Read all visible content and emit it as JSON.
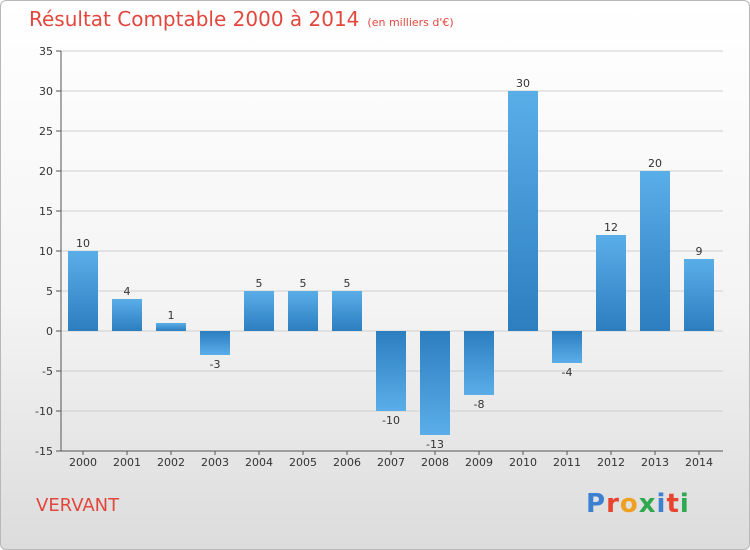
{
  "header": {
    "title": "Résultat Comptable 2000 à 2014",
    "subtitle": "(en milliers d'€)"
  },
  "footer": {
    "place_name": "VERVANT",
    "logo_letters": [
      "P",
      "r",
      "o",
      "x",
      "i",
      "t",
      "i"
    ],
    "logo_colors": [
      "#3d7fd1",
      "#e8432f",
      "#f0a020",
      "#2fa84f",
      "#3d7fd1",
      "#e8432f",
      "#2fa84f"
    ]
  },
  "chart_data": {
    "type": "bar",
    "categories": [
      "2000",
      "2001",
      "2002",
      "2003",
      "2004",
      "2005",
      "2006",
      "2007",
      "2008",
      "2009",
      "2010",
      "2011",
      "2012",
      "2013",
      "2014"
    ],
    "values": [
      10,
      4,
      1,
      -3,
      5,
      5,
      5,
      -10,
      -13,
      -8,
      30,
      -4,
      12,
      20,
      9
    ],
    "value_labels": [
      "10",
      "4",
      "1",
      "-3",
      "5",
      "5",
      "5",
      "-10",
      "-13",
      "-8",
      "30",
      "-4",
      "12",
      "20",
      "9"
    ],
    "ylim": [
      -15,
      35
    ],
    "yticks": [
      35,
      30,
      25,
      20,
      15,
      10,
      5,
      0,
      -5,
      -10,
      -15
    ],
    "ytick_labels": [
      "35",
      "30",
      "25",
      "20",
      "15",
      "10",
      "5",
      "0",
      "-5",
      "-10",
      "-15"
    ],
    "grid": "horizontal",
    "colors": {
      "bar_light": "#5aaee8",
      "bar_dark": "#2c7ebf",
      "grid": "#cfcfcf"
    }
  }
}
